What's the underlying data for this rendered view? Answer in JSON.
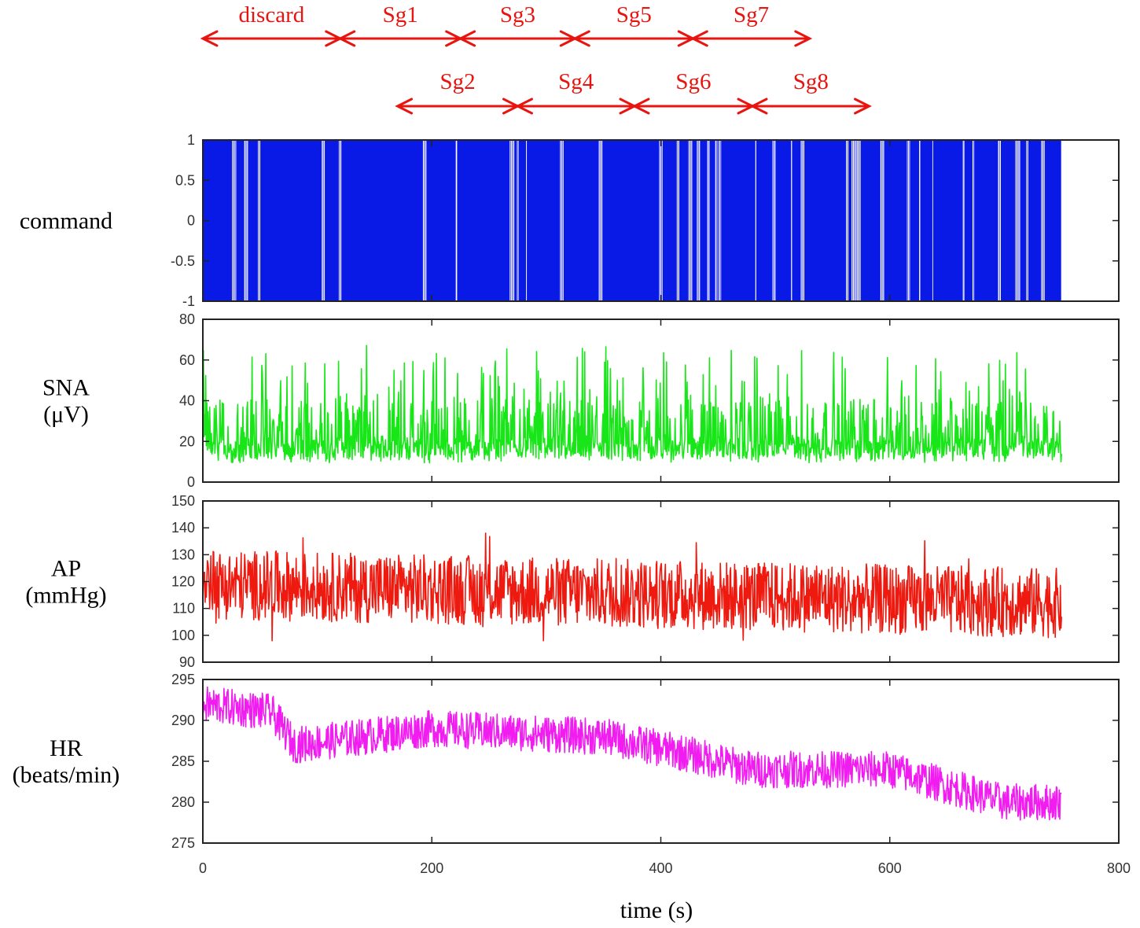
{
  "segments": {
    "row1": [
      {
        "label": "discard",
        "start": 0,
        "end": 120
      },
      {
        "label": "Sg1",
        "start": 120,
        "end": 225
      },
      {
        "label": "Sg3",
        "start": 225,
        "end": 325
      },
      {
        "label": "Sg5",
        "start": 325,
        "end": 428
      },
      {
        "label": "Sg7",
        "start": 428,
        "end": 530
      }
    ],
    "row2": [
      {
        "label": "Sg2",
        "start": 170,
        "end": 275
      },
      {
        "label": "Sg4",
        "start": 275,
        "end": 377
      },
      {
        "label": "Sg6",
        "start": 377,
        "end": 480
      },
      {
        "label": "Sg8",
        "start": 480,
        "end": 582
      }
    ]
  },
  "xaxis": {
    "title": "time (s)",
    "range": [
      0,
      800
    ],
    "ticks": [
      0,
      200,
      400,
      600,
      800
    ],
    "tick_labels": [
      "0",
      "200",
      "400",
      "600",
      "800"
    ]
  },
  "chart_data": [
    {
      "type": "line",
      "name": "command",
      "label_lines": [
        "command"
      ],
      "color": "#0a1ae6",
      "ylim": [
        -1,
        1
      ],
      "yticks": [
        1,
        0.5,
        0,
        -0.5,
        -1
      ],
      "ytick_labels": [
        "1",
        "0.5",
        "0",
        "-0.5",
        "-1"
      ],
      "description_values": {
        "signal": "binary white noise switching between -1 and 1",
        "t_start": 0,
        "t_end": 750
      }
    },
    {
      "type": "line",
      "name": "SNA",
      "label_lines": [
        "SNA",
        "(μV)"
      ],
      "color": "#19e619",
      "ylim": [
        0,
        80
      ],
      "yticks": [
        80,
        60,
        40,
        20,
        0
      ],
      "ytick_labels": [
        "80",
        "60",
        "40",
        "20",
        "0"
      ],
      "approx_range": [
        8,
        70
      ],
      "t_start": 0,
      "t_end": 750
    },
    {
      "type": "line",
      "name": "AP",
      "label_lines": [
        "AP",
        "(mmHg)"
      ],
      "color": "#ee1a10",
      "ylim": [
        90,
        150
      ],
      "yticks": [
        150,
        140,
        130,
        120,
        110,
        100,
        90
      ],
      "ytick_labels": [
        "150",
        "140",
        "130",
        "120",
        "110",
        "100",
        "90"
      ],
      "approx_range": [
        98,
        141
      ],
      "t_start": 0,
      "t_end": 750
    },
    {
      "type": "line",
      "name": "HR",
      "label_lines": [
        "HR",
        "(beats/min)"
      ],
      "color": "#f01cf0",
      "ylim": [
        275,
        295
      ],
      "yticks": [
        295,
        290,
        285,
        280,
        275
      ],
      "ytick_labels": [
        "295",
        "290",
        "285",
        "280",
        "275"
      ],
      "trend": [
        [
          0,
          292
        ],
        [
          60,
          291
        ],
        [
          80,
          287
        ],
        [
          200,
          289
        ],
        [
          350,
          288
        ],
        [
          420,
          286
        ],
        [
          480,
          284
        ],
        [
          600,
          284
        ],
        [
          700,
          280
        ],
        [
          750,
          280
        ]
      ],
      "t_start": 0,
      "t_end": 750
    }
  ]
}
